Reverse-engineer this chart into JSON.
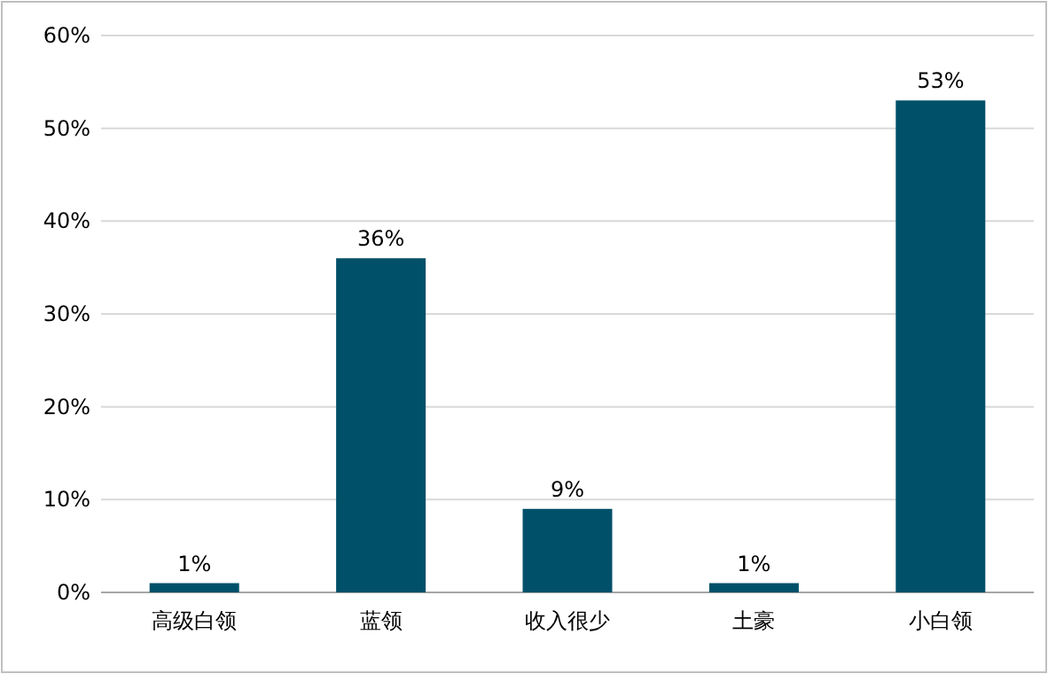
{
  "chart_data": {
    "type": "bar",
    "categories": [
      "高级白领",
      "蓝领",
      "收入很少",
      "土豪",
      "小白领"
    ],
    "values": [
      1,
      36,
      9,
      1,
      53
    ],
    "value_labels": [
      "1%",
      "36%",
      "9%",
      "1%",
      "53%"
    ],
    "color": "#00506a",
    "ylim": [
      0,
      60
    ],
    "yticks": [
      {
        "value": 0,
        "label": "0%"
      },
      {
        "value": 10,
        "label": "10%"
      },
      {
        "value": 20,
        "label": "20%"
      },
      {
        "value": 30,
        "label": "30%"
      },
      {
        "value": 40,
        "label": "40%"
      },
      {
        "value": 50,
        "label": "50%"
      },
      {
        "value": 60,
        "label": "60%"
      }
    ],
    "grid": "y"
  }
}
